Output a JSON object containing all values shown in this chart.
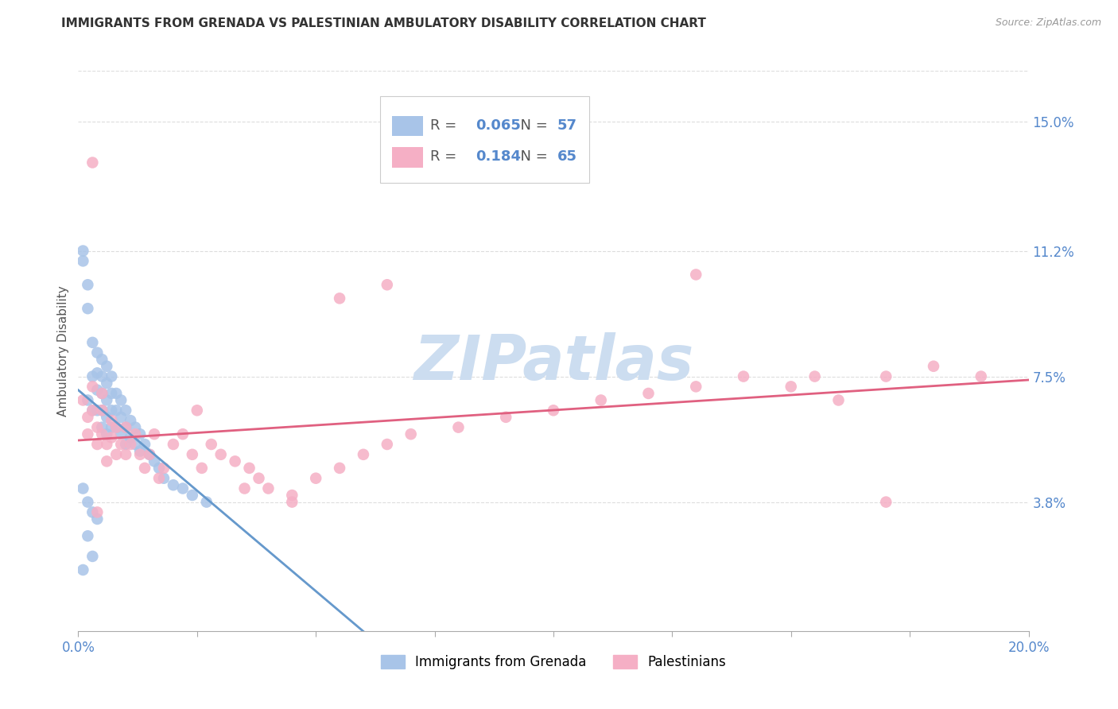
{
  "title": "IMMIGRANTS FROM GRENADA VS PALESTINIAN AMBULATORY DISABILITY CORRELATION CHART",
  "source": "Source: ZipAtlas.com",
  "ylabel": "Ambulatory Disability",
  "yticks": [
    0.038,
    0.075,
    0.112,
    0.15
  ],
  "ytick_labels": [
    "3.8%",
    "7.5%",
    "11.2%",
    "15.0%"
  ],
  "xlim": [
    0.0,
    0.2
  ],
  "ylim": [
    0.0,
    0.165
  ],
  "xtick_vals": [
    0.0,
    0.025,
    0.05,
    0.075,
    0.1,
    0.125,
    0.15,
    0.175,
    0.2
  ],
  "legend_r1": "0.065",
  "legend_n1": "57",
  "legend_r2": "0.184",
  "legend_n2": "65",
  "series1_color": "#a8c4e8",
  "series2_color": "#f5afc5",
  "trendline1_color": "#6699cc",
  "trendline2_color": "#e06080",
  "trendline1_dash_color": "#b8d0e8",
  "watermark": "ZIPatlas",
  "watermark_color": "#ccddf0",
  "series1_name": "Immigrants from Grenada",
  "series2_name": "Palestinians",
  "grid_color": "#dddddd",
  "title_color": "#333333",
  "right_tick_color": "#5588cc",
  "bottom_label_color": "#5588cc",
  "marker_size": 110,
  "grenada_x": [
    0.001,
    0.001,
    0.002,
    0.002,
    0.002,
    0.003,
    0.003,
    0.003,
    0.004,
    0.004,
    0.004,
    0.004,
    0.005,
    0.005,
    0.005,
    0.005,
    0.005,
    0.006,
    0.006,
    0.006,
    0.006,
    0.006,
    0.007,
    0.007,
    0.007,
    0.007,
    0.008,
    0.008,
    0.008,
    0.009,
    0.009,
    0.009,
    0.01,
    0.01,
    0.01,
    0.011,
    0.011,
    0.012,
    0.012,
    0.013,
    0.013,
    0.014,
    0.015,
    0.016,
    0.017,
    0.018,
    0.02,
    0.022,
    0.024,
    0.027,
    0.001,
    0.002,
    0.003,
    0.004,
    0.002,
    0.003,
    0.001
  ],
  "grenada_y": [
    0.112,
    0.109,
    0.102,
    0.095,
    0.068,
    0.085,
    0.075,
    0.065,
    0.082,
    0.076,
    0.071,
    0.065,
    0.08,
    0.075,
    0.07,
    0.065,
    0.06,
    0.078,
    0.073,
    0.068,
    0.063,
    0.058,
    0.075,
    0.07,
    0.065,
    0.06,
    0.07,
    0.065,
    0.06,
    0.068,
    0.063,
    0.058,
    0.065,
    0.06,
    0.055,
    0.062,
    0.057,
    0.06,
    0.055,
    0.058,
    0.053,
    0.055,
    0.052,
    0.05,
    0.048,
    0.045,
    0.043,
    0.042,
    0.04,
    0.038,
    0.042,
    0.038,
    0.035,
    0.033,
    0.028,
    0.022,
    0.018
  ],
  "palestinians_x": [
    0.001,
    0.002,
    0.002,
    0.003,
    0.003,
    0.004,
    0.004,
    0.005,
    0.005,
    0.005,
    0.006,
    0.006,
    0.007,
    0.007,
    0.008,
    0.008,
    0.009,
    0.01,
    0.01,
    0.011,
    0.012,
    0.013,
    0.014,
    0.015,
    0.016,
    0.017,
    0.018,
    0.02,
    0.022,
    0.024,
    0.026,
    0.028,
    0.03,
    0.033,
    0.036,
    0.038,
    0.04,
    0.045,
    0.05,
    0.055,
    0.06,
    0.065,
    0.07,
    0.08,
    0.09,
    0.1,
    0.11,
    0.12,
    0.13,
    0.14,
    0.15,
    0.16,
    0.17,
    0.18,
    0.19,
    0.025,
    0.035,
    0.045,
    0.055,
    0.065,
    0.13,
    0.155,
    0.17,
    0.003,
    0.004
  ],
  "palestinians_y": [
    0.068,
    0.063,
    0.058,
    0.072,
    0.065,
    0.06,
    0.055,
    0.07,
    0.065,
    0.058,
    0.055,
    0.05,
    0.062,
    0.057,
    0.06,
    0.052,
    0.055,
    0.06,
    0.052,
    0.055,
    0.058,
    0.052,
    0.048,
    0.052,
    0.058,
    0.045,
    0.048,
    0.055,
    0.058,
    0.052,
    0.048,
    0.055,
    0.052,
    0.05,
    0.048,
    0.045,
    0.042,
    0.04,
    0.045,
    0.048,
    0.052,
    0.055,
    0.058,
    0.06,
    0.063,
    0.065,
    0.068,
    0.07,
    0.072,
    0.075,
    0.072,
    0.068,
    0.075,
    0.078,
    0.075,
    0.065,
    0.042,
    0.038,
    0.098,
    0.102,
    0.105,
    0.075,
    0.038,
    0.138,
    0.035
  ]
}
